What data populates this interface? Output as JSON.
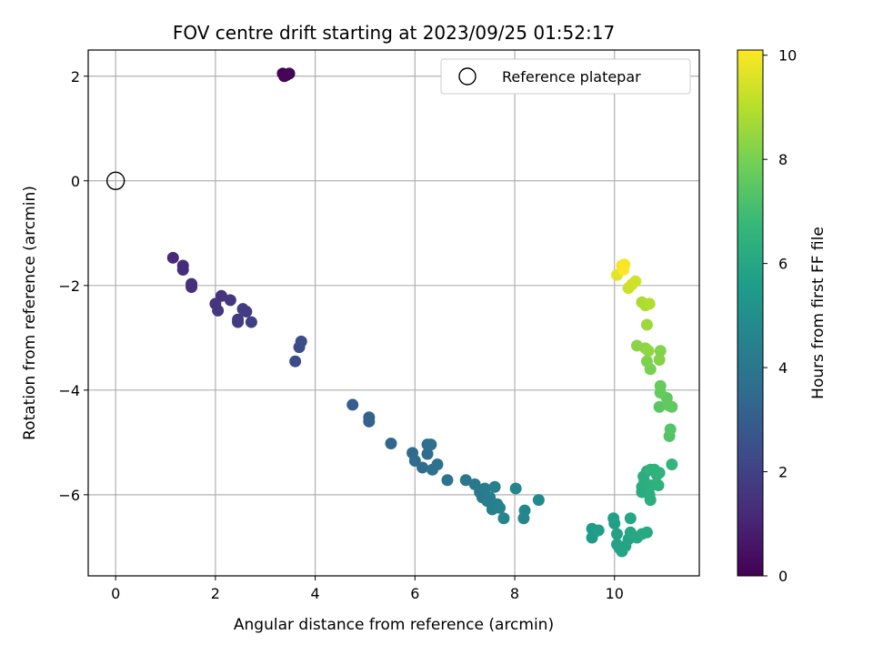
{
  "chart_data": {
    "type": "scatter",
    "title": "FOV centre drift starting at 2023/09/25 01:52:17",
    "xlabel": "Angular distance from reference (arcmin)",
    "ylabel": "Rotation from reference (arcmin)",
    "xlim": [
      -0.55,
      11.7
    ],
    "ylim": [
      -7.55,
      2.5
    ],
    "xticks": [
      0,
      2,
      4,
      6,
      8,
      10
    ],
    "yticks": [
      -6,
      -4,
      -2,
      0,
      2
    ],
    "grid": true,
    "legend": {
      "placement": "top-right",
      "entries": [
        "Reference platepar"
      ]
    },
    "reference_point": {
      "x": 0,
      "y": 0
    },
    "colorbar": {
      "label": "Hours from first FF file",
      "range": [
        0,
        10.1
      ],
      "ticks": [
        0,
        2,
        4,
        6,
        8,
        10
      ],
      "colormap": "viridis",
      "colors": [
        "#440154",
        "#482878",
        "#3e4989",
        "#31688e",
        "#26828e",
        "#1f9e89",
        "#35b779",
        "#6ece58",
        "#b5de2b",
        "#fde725"
      ]
    },
    "series": [
      {
        "points": [
          [
            3.35,
            2.05,
            0.0
          ],
          [
            3.42,
            2.02,
            0.05
          ],
          [
            3.48,
            2.05,
            0.1
          ],
          [
            3.38,
            2.0,
            0.15
          ],
          [
            1.15,
            -1.47,
            1.2
          ],
          [
            1.35,
            -1.62,
            1.25
          ],
          [
            1.35,
            -1.7,
            1.3
          ],
          [
            1.52,
            -1.97,
            1.35
          ],
          [
            1.52,
            -2.03,
            1.4
          ],
          [
            2.12,
            -2.2,
            1.5
          ],
          [
            2.0,
            -2.35,
            1.55
          ],
          [
            2.05,
            -2.48,
            1.6
          ],
          [
            2.3,
            -2.28,
            1.6
          ],
          [
            2.45,
            -2.65,
            1.7
          ],
          [
            2.45,
            -2.7,
            1.75
          ],
          [
            2.55,
            -2.45,
            1.8
          ],
          [
            2.62,
            -2.5,
            1.85
          ],
          [
            2.72,
            -2.7,
            1.9
          ],
          [
            3.6,
            -3.45,
            2.3
          ],
          [
            3.68,
            -3.18,
            2.35
          ],
          [
            3.72,
            -3.07,
            2.4
          ],
          [
            4.75,
            -4.28,
            3.0
          ],
          [
            5.08,
            -4.52,
            3.1
          ],
          [
            5.08,
            -4.6,
            3.15
          ],
          [
            5.52,
            -5.02,
            3.3
          ],
          [
            5.95,
            -5.2,
            3.5
          ],
          [
            6.0,
            -5.35,
            3.55
          ],
          [
            6.15,
            -5.48,
            3.6
          ],
          [
            6.25,
            -5.22,
            3.6
          ],
          [
            6.25,
            -5.04,
            3.65
          ],
          [
            6.32,
            -5.04,
            3.7
          ],
          [
            6.35,
            -5.52,
            3.75
          ],
          [
            6.45,
            -5.42,
            3.8
          ],
          [
            6.65,
            -5.72,
            3.9
          ],
          [
            7.02,
            -5.72,
            4.0
          ],
          [
            7.2,
            -5.8,
            4.05
          ],
          [
            7.3,
            -5.95,
            4.1
          ],
          [
            7.35,
            -6.05,
            4.15
          ],
          [
            7.4,
            -5.88,
            4.2
          ],
          [
            7.45,
            -6.12,
            4.25
          ],
          [
            7.5,
            -6.05,
            4.3
          ],
          [
            7.55,
            -6.28,
            4.35
          ],
          [
            7.6,
            -5.85,
            4.4
          ],
          [
            7.65,
            -6.18,
            4.45
          ],
          [
            7.7,
            -6.25,
            4.5
          ],
          [
            7.78,
            -6.45,
            4.55
          ],
          [
            8.02,
            -5.88,
            4.6
          ],
          [
            8.18,
            -6.45,
            4.65
          ],
          [
            8.2,
            -6.3,
            4.7
          ],
          [
            8.48,
            -6.1,
            4.75
          ],
          [
            9.55,
            -6.82,
            5.5
          ],
          [
            9.55,
            -6.65,
            5.55
          ],
          [
            9.62,
            -6.7,
            5.55
          ],
          [
            9.68,
            -6.68,
            5.6
          ],
          [
            9.98,
            -6.45,
            5.7
          ],
          [
            10.0,
            -6.55,
            5.7
          ],
          [
            10.05,
            -6.75,
            5.75
          ],
          [
            10.05,
            -6.95,
            5.8
          ],
          [
            10.1,
            -7.02,
            5.85
          ],
          [
            10.15,
            -7.08,
            5.85
          ],
          [
            10.22,
            -6.98,
            5.9
          ],
          [
            10.28,
            -6.85,
            5.9
          ],
          [
            10.32,
            -6.72,
            5.95
          ],
          [
            10.32,
            -6.45,
            5.95
          ],
          [
            10.45,
            -6.82,
            6.0
          ],
          [
            10.55,
            -6.75,
            6.05
          ],
          [
            10.65,
            -6.72,
            6.1
          ],
          [
            10.55,
            -5.85,
            6.2
          ],
          [
            10.55,
            -5.95,
            6.22
          ],
          [
            10.58,
            -5.65,
            6.25
          ],
          [
            10.6,
            -5.75,
            6.28
          ],
          [
            10.65,
            -5.55,
            6.3
          ],
          [
            10.7,
            -6.0,
            6.33
          ],
          [
            10.72,
            -6.1,
            6.35
          ],
          [
            10.75,
            -5.82,
            6.38
          ],
          [
            10.8,
            -5.52,
            6.4
          ],
          [
            10.85,
            -5.62,
            6.43
          ],
          [
            10.88,
            -5.82,
            6.45
          ],
          [
            10.9,
            -5.58,
            6.48
          ],
          [
            10.72,
            -5.52,
            6.5
          ],
          [
            11.15,
            -5.42,
            6.6
          ],
          [
            11.1,
            -4.88,
            7.3
          ],
          [
            11.12,
            -4.75,
            7.35
          ],
          [
            10.9,
            -4.32,
            7.5
          ],
          [
            11.05,
            -4.15,
            7.55
          ],
          [
            11.1,
            -4.3,
            7.6
          ],
          [
            11.15,
            -4.32,
            7.6
          ],
          [
            10.92,
            -4.05,
            7.65
          ],
          [
            10.92,
            -3.92,
            7.7
          ],
          [
            10.72,
            -3.6,
            8.0
          ],
          [
            10.65,
            -3.45,
            8.1
          ],
          [
            10.92,
            -3.25,
            8.15
          ],
          [
            10.9,
            -3.42,
            8.2
          ],
          [
            10.45,
            -3.15,
            8.3
          ],
          [
            10.62,
            -3.2,
            8.35
          ],
          [
            10.68,
            -3.25,
            8.4
          ],
          [
            10.65,
            -2.75,
            8.6
          ],
          [
            10.55,
            -2.32,
            8.8
          ],
          [
            10.62,
            -2.38,
            8.85
          ],
          [
            10.7,
            -2.35,
            8.9
          ],
          [
            10.28,
            -2.05,
            9.3
          ],
          [
            10.35,
            -1.98,
            9.35
          ],
          [
            10.42,
            -1.92,
            9.4
          ],
          [
            10.05,
            -1.8,
            9.7
          ],
          [
            10.15,
            -1.62,
            9.9
          ],
          [
            10.2,
            -1.6,
            10.0
          ],
          [
            10.18,
            -1.7,
            10.1
          ]
        ]
      }
    ]
  }
}
